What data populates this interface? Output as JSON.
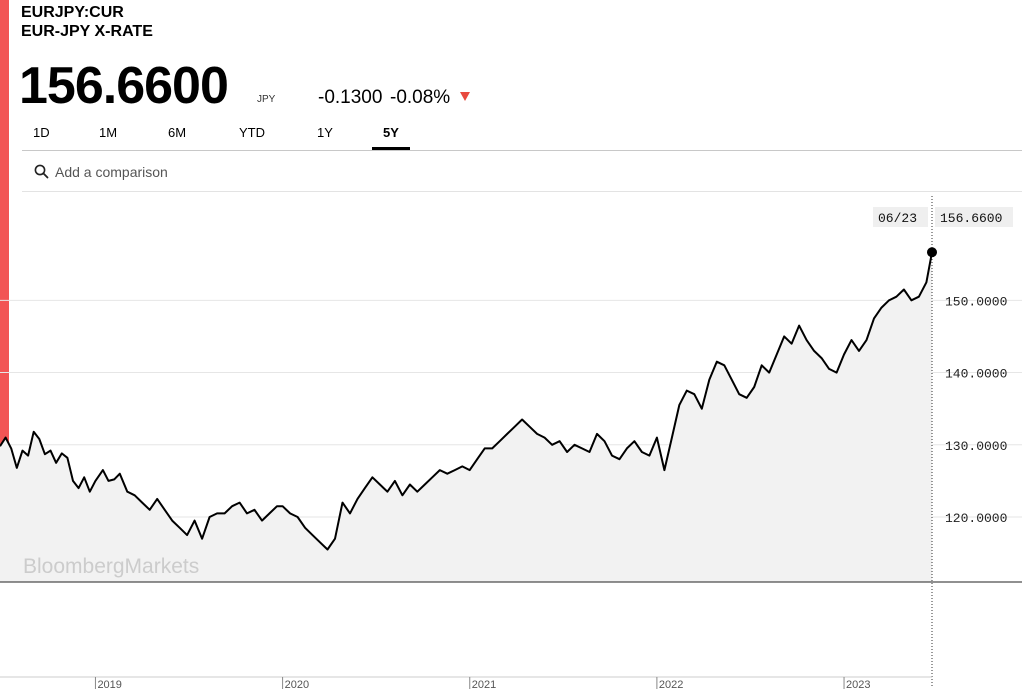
{
  "header": {
    "ticker": "EURJPY:CUR",
    "name": "EUR-JPY X-RATE",
    "price": "156.6600",
    "currency": "JPY",
    "change": "-0.1300",
    "change_pct": "-0.08%",
    "accent_color": "#f25454",
    "down_color": "#e8493e"
  },
  "tabs": [
    {
      "label": "1D"
    },
    {
      "label": "1M"
    },
    {
      "label": "6M"
    },
    {
      "label": "YTD"
    },
    {
      "label": "1Y"
    },
    {
      "label": "5Y",
      "active": true
    }
  ],
  "search": {
    "placeholder": "Add a comparison",
    "icon": "search-icon"
  },
  "watermark": "BloombergMarkets",
  "tooltip": {
    "date": "06/23",
    "value": "156.6600"
  },
  "chart_data": {
    "type": "area",
    "ylim": [
      111,
      165
    ],
    "y_ticks": [
      120,
      130,
      140,
      150
    ],
    "y_tick_labels": [
      "120.0000",
      "130.0000",
      "140.0000",
      "150.0000"
    ],
    "x_range": [
      2018.49,
      2023.47
    ],
    "x_ticks": [
      2019,
      2020,
      2021,
      2022,
      2023
    ],
    "x_tick_labels": [
      "2019",
      "2020",
      "2021",
      "2022",
      "2023"
    ],
    "grid": true,
    "series": [
      {
        "values": [
          [
            2018.49,
            129.8
          ],
          [
            2018.52,
            131.0
          ],
          [
            2018.55,
            129.5
          ],
          [
            2018.58,
            126.8
          ],
          [
            2018.61,
            129.2
          ],
          [
            2018.64,
            128.5
          ],
          [
            2018.67,
            131.8
          ],
          [
            2018.7,
            130.8
          ],
          [
            2018.73,
            128.7
          ],
          [
            2018.76,
            129.2
          ],
          [
            2018.79,
            127.5
          ],
          [
            2018.82,
            128.8
          ],
          [
            2018.85,
            128.2
          ],
          [
            2018.88,
            125.0
          ],
          [
            2018.91,
            124.0
          ],
          [
            2018.94,
            125.5
          ],
          [
            2018.97,
            123.5
          ],
          [
            2019.0,
            125.0
          ],
          [
            2019.04,
            126.5
          ],
          [
            2019.07,
            125.0
          ],
          [
            2019.1,
            125.2
          ],
          [
            2019.13,
            126.0
          ],
          [
            2019.17,
            123.5
          ],
          [
            2019.21,
            123.0
          ],
          [
            2019.25,
            122.0
          ],
          [
            2019.29,
            121.0
          ],
          [
            2019.33,
            122.5
          ],
          [
            2019.37,
            121.0
          ],
          [
            2019.41,
            119.5
          ],
          [
            2019.45,
            118.5
          ],
          [
            2019.49,
            117.5
          ],
          [
            2019.53,
            119.5
          ],
          [
            2019.57,
            117.0
          ],
          [
            2019.61,
            120.0
          ],
          [
            2019.65,
            120.5
          ],
          [
            2019.69,
            120.5
          ],
          [
            2019.73,
            121.5
          ],
          [
            2019.77,
            122.0
          ],
          [
            2019.81,
            120.5
          ],
          [
            2019.85,
            121.0
          ],
          [
            2019.89,
            119.5
          ],
          [
            2019.93,
            120.5
          ],
          [
            2019.97,
            121.5
          ],
          [
            2020.0,
            121.5
          ],
          [
            2020.04,
            120.5
          ],
          [
            2020.08,
            120.0
          ],
          [
            2020.12,
            118.5
          ],
          [
            2020.16,
            117.5
          ],
          [
            2020.2,
            116.5
          ],
          [
            2020.24,
            115.5
          ],
          [
            2020.28,
            117.0
          ],
          [
            2020.32,
            122.0
          ],
          [
            2020.36,
            120.5
          ],
          [
            2020.4,
            122.5
          ],
          [
            2020.44,
            124.0
          ],
          [
            2020.48,
            125.5
          ],
          [
            2020.52,
            124.5
          ],
          [
            2020.56,
            123.5
          ],
          [
            2020.6,
            125.0
          ],
          [
            2020.64,
            123.0
          ],
          [
            2020.68,
            124.5
          ],
          [
            2020.72,
            123.5
          ],
          [
            2020.76,
            124.5
          ],
          [
            2020.8,
            125.5
          ],
          [
            2020.84,
            126.5
          ],
          [
            2020.88,
            126.0
          ],
          [
            2020.92,
            126.5
          ],
          [
            2020.96,
            127.0
          ],
          [
            2021.0,
            126.5
          ],
          [
            2021.04,
            128.0
          ],
          [
            2021.08,
            129.5
          ],
          [
            2021.12,
            129.5
          ],
          [
            2021.16,
            130.5
          ],
          [
            2021.2,
            131.5
          ],
          [
            2021.24,
            132.5
          ],
          [
            2021.28,
            133.5
          ],
          [
            2021.32,
            132.5
          ],
          [
            2021.36,
            131.5
          ],
          [
            2021.4,
            131.0
          ],
          [
            2021.44,
            130.0
          ],
          [
            2021.48,
            130.5
          ],
          [
            2021.52,
            129.0
          ],
          [
            2021.56,
            130.0
          ],
          [
            2021.6,
            129.5
          ],
          [
            2021.64,
            129.0
          ],
          [
            2021.68,
            131.5
          ],
          [
            2021.72,
            130.5
          ],
          [
            2021.76,
            128.5
          ],
          [
            2021.8,
            128.0
          ],
          [
            2021.84,
            129.5
          ],
          [
            2021.88,
            130.5
          ],
          [
            2021.92,
            129.0
          ],
          [
            2021.96,
            128.5
          ],
          [
            2022.0,
            131.0
          ],
          [
            2022.04,
            126.5
          ],
          [
            2022.08,
            131.0
          ],
          [
            2022.12,
            135.5
          ],
          [
            2022.16,
            137.5
          ],
          [
            2022.2,
            137.0
          ],
          [
            2022.24,
            135.0
          ],
          [
            2022.28,
            139.0
          ],
          [
            2022.32,
            141.5
          ],
          [
            2022.36,
            141.0
          ],
          [
            2022.4,
            139.0
          ],
          [
            2022.44,
            137.0
          ],
          [
            2022.48,
            136.5
          ],
          [
            2022.52,
            138.0
          ],
          [
            2022.56,
            141.0
          ],
          [
            2022.6,
            140.0
          ],
          [
            2022.64,
            142.5
          ],
          [
            2022.68,
            145.0
          ],
          [
            2022.72,
            144.0
          ],
          [
            2022.76,
            146.5
          ],
          [
            2022.8,
            144.5
          ],
          [
            2022.84,
            143.0
          ],
          [
            2022.88,
            142.0
          ],
          [
            2022.92,
            140.5
          ],
          [
            2022.96,
            140.0
          ],
          [
            2023.0,
            142.5
          ],
          [
            2023.04,
            144.5
          ],
          [
            2023.08,
            143.0
          ],
          [
            2023.12,
            144.5
          ],
          [
            2023.16,
            147.5
          ],
          [
            2023.2,
            149.0
          ],
          [
            2023.24,
            150.0
          ],
          [
            2023.28,
            150.5
          ],
          [
            2023.32,
            151.5
          ],
          [
            2023.36,
            150.0
          ],
          [
            2023.4,
            150.5
          ],
          [
            2023.44,
            152.5
          ],
          [
            2023.47,
            156.66
          ]
        ]
      }
    ]
  }
}
